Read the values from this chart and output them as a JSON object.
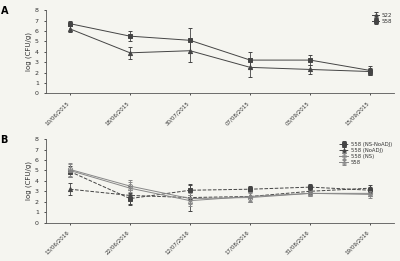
{
  "panel_A": {
    "x_labels": [
      "10/06/2015",
      "18/06/2015",
      "30/07/2015",
      "07/08/2015",
      "03/09/2015",
      "15/09/2015"
    ],
    "series": [
      {
        "label": "522",
        "marker": "^",
        "color": "#444444",
        "linestyle": "-",
        "fillstyle": "full",
        "y": [
          6.2,
          3.9,
          4.1,
          2.5,
          2.3,
          2.1
        ],
        "yerr": [
          0.3,
          0.6,
          1.1,
          0.9,
          0.4,
          0.3
        ]
      },
      {
        "label": "558",
        "marker": "s",
        "color": "#444444",
        "linestyle": "-",
        "fillstyle": "full",
        "y": [
          6.7,
          5.5,
          5.1,
          3.2,
          3.2,
          2.2
        ],
        "yerr": [
          0.25,
          0.5,
          1.2,
          0.8,
          0.5,
          0.4
        ]
      }
    ],
    "ylabel": "log (CFU/g)",
    "ylim": [
      0,
      8
    ],
    "yticks": [
      0,
      1,
      2,
      3,
      4,
      5,
      6,
      7,
      8
    ]
  },
  "panel_B": {
    "x_labels": [
      "13/06/2016",
      "22/06/2016",
      "12/07/2016",
      "17/08/2016",
      "31/08/2016",
      "19/09/2016"
    ],
    "series": [
      {
        "label": "558 (NS-NoADJ)",
        "marker": "s",
        "color": "#444444",
        "linestyle": "--",
        "fillstyle": "full",
        "y": [
          4.9,
          2.3,
          3.1,
          3.2,
          3.4,
          3.1
        ],
        "yerr": [
          0.5,
          0.5,
          0.5,
          0.3,
          0.3,
          0.3
        ]
      },
      {
        "label": "558 (NoADJ)",
        "marker": "^",
        "color": "#444444",
        "linestyle": "--",
        "fillstyle": "full",
        "y": [
          3.2,
          2.6,
          2.4,
          2.5,
          3.0,
          3.3
        ],
        "yerr": [
          0.6,
          0.9,
          1.3,
          0.5,
          0.3,
          0.3
        ]
      },
      {
        "label": "558 (NS)",
        "marker": "o",
        "color": "#888888",
        "linestyle": "-",
        "fillstyle": "none",
        "y": [
          5.1,
          3.5,
          2.3,
          2.4,
          2.8,
          2.8
        ],
        "yerr": [
          0.6,
          0.6,
          0.5,
          0.4,
          0.3,
          0.3
        ]
      },
      {
        "label": "558",
        "marker": "^",
        "color": "#888888",
        "linestyle": "-",
        "fillstyle": "none",
        "y": [
          5.0,
          3.3,
          2.1,
          2.5,
          2.8,
          2.7
        ],
        "yerr": [
          0.6,
          0.6,
          0.5,
          0.4,
          0.3,
          0.3
        ]
      }
    ],
    "ylabel": "log (CFU/g)",
    "ylim": [
      0,
      8
    ],
    "yticks": [
      0,
      1,
      2,
      3,
      4,
      5,
      6,
      7,
      8
    ]
  },
  "bg_color": "#f5f5f0",
  "panel_bg": "#f5f5f0"
}
